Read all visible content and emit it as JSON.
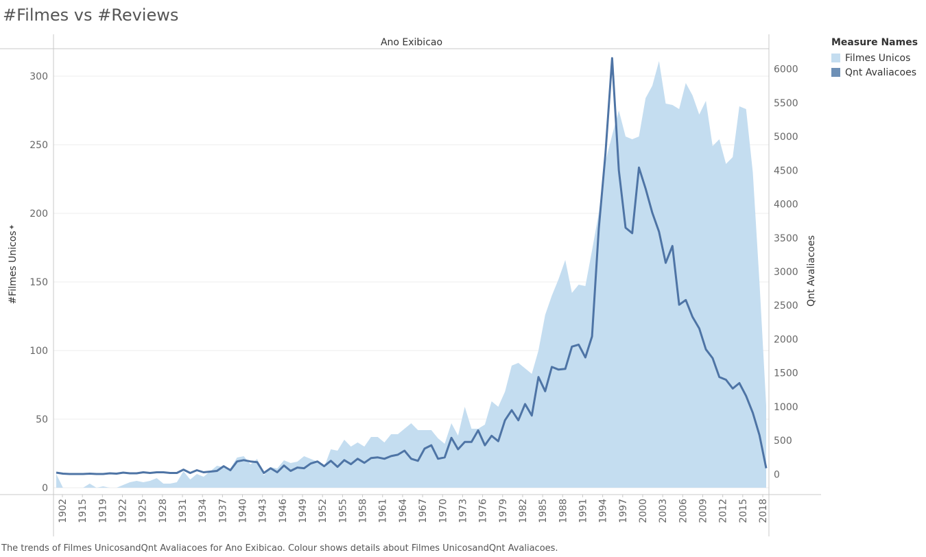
{
  "title": "#Filmes vs #Reviews",
  "caption": "The trends of Filmes UnicosandQnt Avaliacoes for Ano Exibicao.  Colour shows details about Filmes UnicosandQnt Avaliacoes.",
  "legend": {
    "title": "Measure Names",
    "items": [
      {
        "label": "Filmes Unicos",
        "color": "#c4ddf0"
      },
      {
        "label": "Qnt Avaliacoes",
        "color": "#6e90b6"
      }
    ]
  },
  "colors": {
    "area": "#c4ddf0",
    "line": "#4e74a5",
    "grid": "#ececec",
    "axis": "#c8c8c8"
  },
  "chart_data": {
    "type": "area+line",
    "header": "Ano Exibicao",
    "ylabel_left": "#Filmes Unicos",
    "ylabel_right": "Qnt Avaliacoes",
    "ylim_left": [
      -5,
      320
    ],
    "ylim_right": [
      -300,
      6300
    ],
    "yticks_left": [
      0,
      50,
      100,
      150,
      200,
      250,
      300
    ],
    "yticks_right": [
      0,
      500,
      1000,
      1500,
      2000,
      2500,
      3000,
      3500,
      4000,
      4500,
      5000,
      5500,
      6000
    ],
    "x_tick_labels": [
      "1902",
      "1915",
      "1919",
      "1922",
      "1925",
      "1928",
      "1931",
      "1934",
      "1937",
      "1940",
      "1943",
      "1946",
      "1949",
      "1952",
      "1955",
      "1958",
      "1961",
      "1964",
      "1967",
      "1970",
      "1973",
      "1976",
      "1979",
      "1982",
      "1985",
      "1988",
      "1991",
      "1994",
      "1997",
      "2000",
      "2003",
      "2006",
      "2009",
      "2012",
      "2015",
      "2018"
    ],
    "series": [
      {
        "name": "Filmes Unicos",
        "values": [
          10,
          0,
          0,
          0,
          0,
          3,
          0,
          1,
          0,
          0,
          2,
          4,
          5,
          4,
          5,
          7,
          3,
          3,
          4,
          12,
          6,
          10,
          8,
          12,
          16,
          15,
          14,
          22,
          23,
          17,
          21,
          9,
          15,
          14,
          20,
          18,
          19,
          23,
          21,
          19,
          15,
          28,
          27,
          35,
          30,
          33,
          30,
          37,
          37,
          33,
          39,
          39,
          43,
          47,
          42,
          42,
          42,
          36,
          32,
          47,
          38,
          59,
          43,
          43,
          46,
          63,
          59,
          70,
          89,
          91,
          87,
          83,
          100,
          126,
          140,
          152,
          166,
          142,
          148,
          147,
          173,
          200,
          238,
          257,
          275,
          256,
          254,
          256,
          284,
          293,
          311,
          280,
          279,
          276,
          295,
          286,
          272,
          282,
          249,
          254,
          236,
          241,
          278,
          276,
          230,
          150,
          60
        ]
      },
      {
        "name": "Qnt Avaliacoes",
        "values": [
          25,
          10,
          5,
          5,
          5,
          10,
          5,
          5,
          15,
          10,
          25,
          15,
          15,
          30,
          20,
          30,
          30,
          20,
          20,
          70,
          20,
          60,
          30,
          40,
          50,
          120,
          60,
          190,
          210,
          190,
          180,
          20,
          90,
          30,
          130,
          50,
          100,
          90,
          160,
          190,
          120,
          200,
          110,
          210,
          150,
          230,
          170,
          240,
          250,
          230,
          270,
          290,
          350,
          230,
          200,
          380,
          430,
          230,
          250,
          540,
          370,
          480,
          480,
          650,
          430,
          570,
          490,
          800,
          950,
          800,
          1040,
          870,
          1440,
          1230,
          1590,
          1550,
          1560,
          1890,
          1920,
          1730,
          2040,
          3630,
          4750,
          6160,
          4500,
          3650,
          3570,
          4540,
          4230,
          3870,
          3590,
          3130,
          3380,
          2510,
          2580,
          2330,
          2160,
          1850,
          1720,
          1440,
          1400,
          1270,
          1350,
          1160,
          910,
          580,
          90
        ]
      }
    ]
  }
}
